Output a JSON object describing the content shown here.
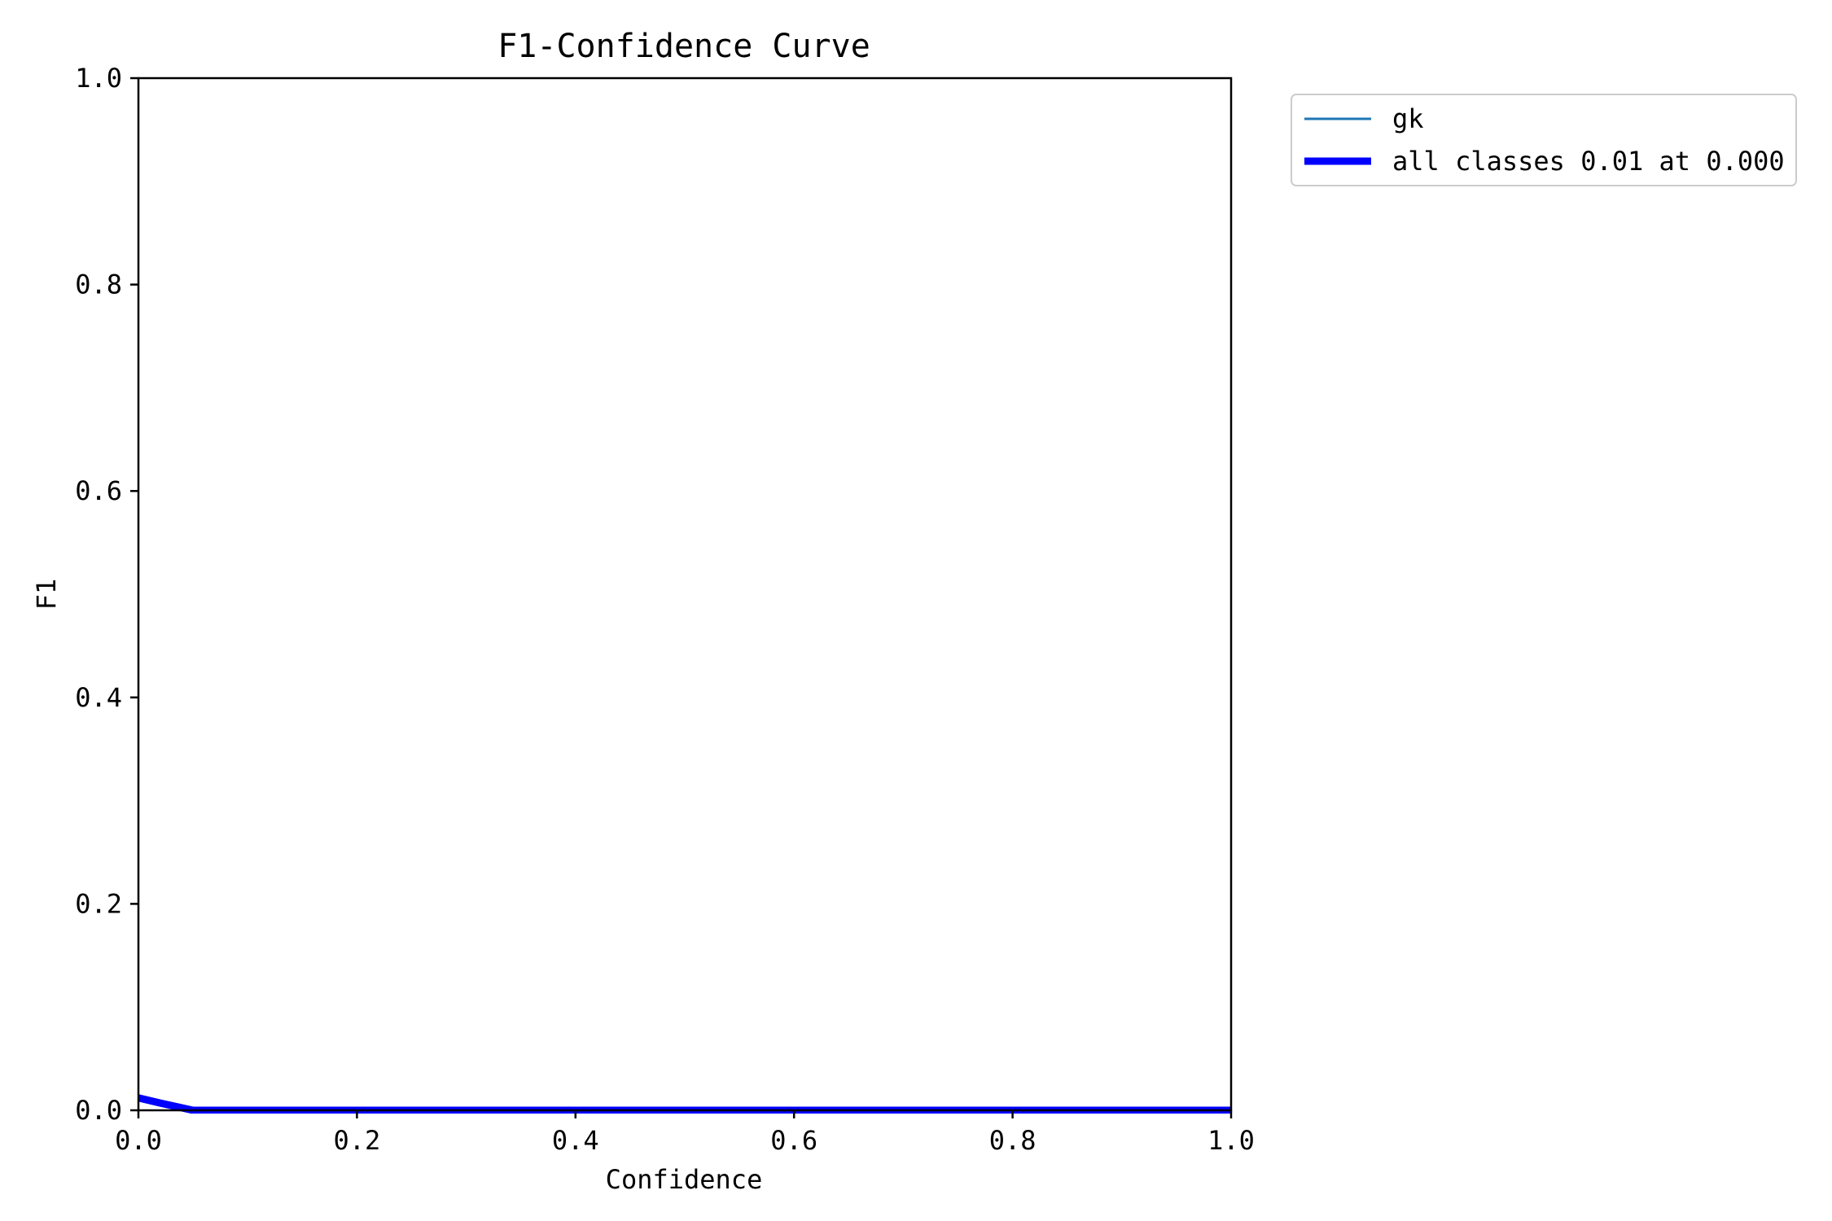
{
  "chart_data": {
    "type": "line",
    "title": "F1-Confidence Curve",
    "xlabel": "Confidence",
    "ylabel": "F1",
    "xlim": [
      0,
      1
    ],
    "ylim": [
      0,
      1
    ],
    "xticks": [
      "0.0",
      "0.2",
      "0.4",
      "0.6",
      "0.8",
      "1.0"
    ],
    "yticks": [
      "0.0",
      "0.2",
      "0.4",
      "0.6",
      "0.8",
      "1.0"
    ],
    "grid": false,
    "legend_position": "outside-top-right",
    "series": [
      {
        "name": "gk",
        "color": "#1f77b4",
        "style": "thin",
        "x": [
          0.0,
          0.02,
          0.05,
          0.1,
          0.2,
          0.3,
          0.4,
          0.5,
          0.6,
          0.7,
          0.8,
          0.9,
          1.0
        ],
        "y": [
          0.012,
          0.007,
          0.0,
          0.0,
          0.0,
          0.0,
          0.0,
          0.0,
          0.0,
          0.0,
          0.0,
          0.0,
          0.0
        ]
      },
      {
        "name": "all classes 0.01 at 0.000",
        "color": "#0000ff",
        "style": "thick",
        "x": [
          0.0,
          0.02,
          0.05,
          0.1,
          0.2,
          0.3,
          0.4,
          0.5,
          0.6,
          0.7,
          0.8,
          0.9,
          1.0
        ],
        "y": [
          0.012,
          0.007,
          0.0,
          0.0,
          0.0,
          0.0,
          0.0,
          0.0,
          0.0,
          0.0,
          0.0,
          0.0,
          0.0
        ]
      }
    ]
  }
}
